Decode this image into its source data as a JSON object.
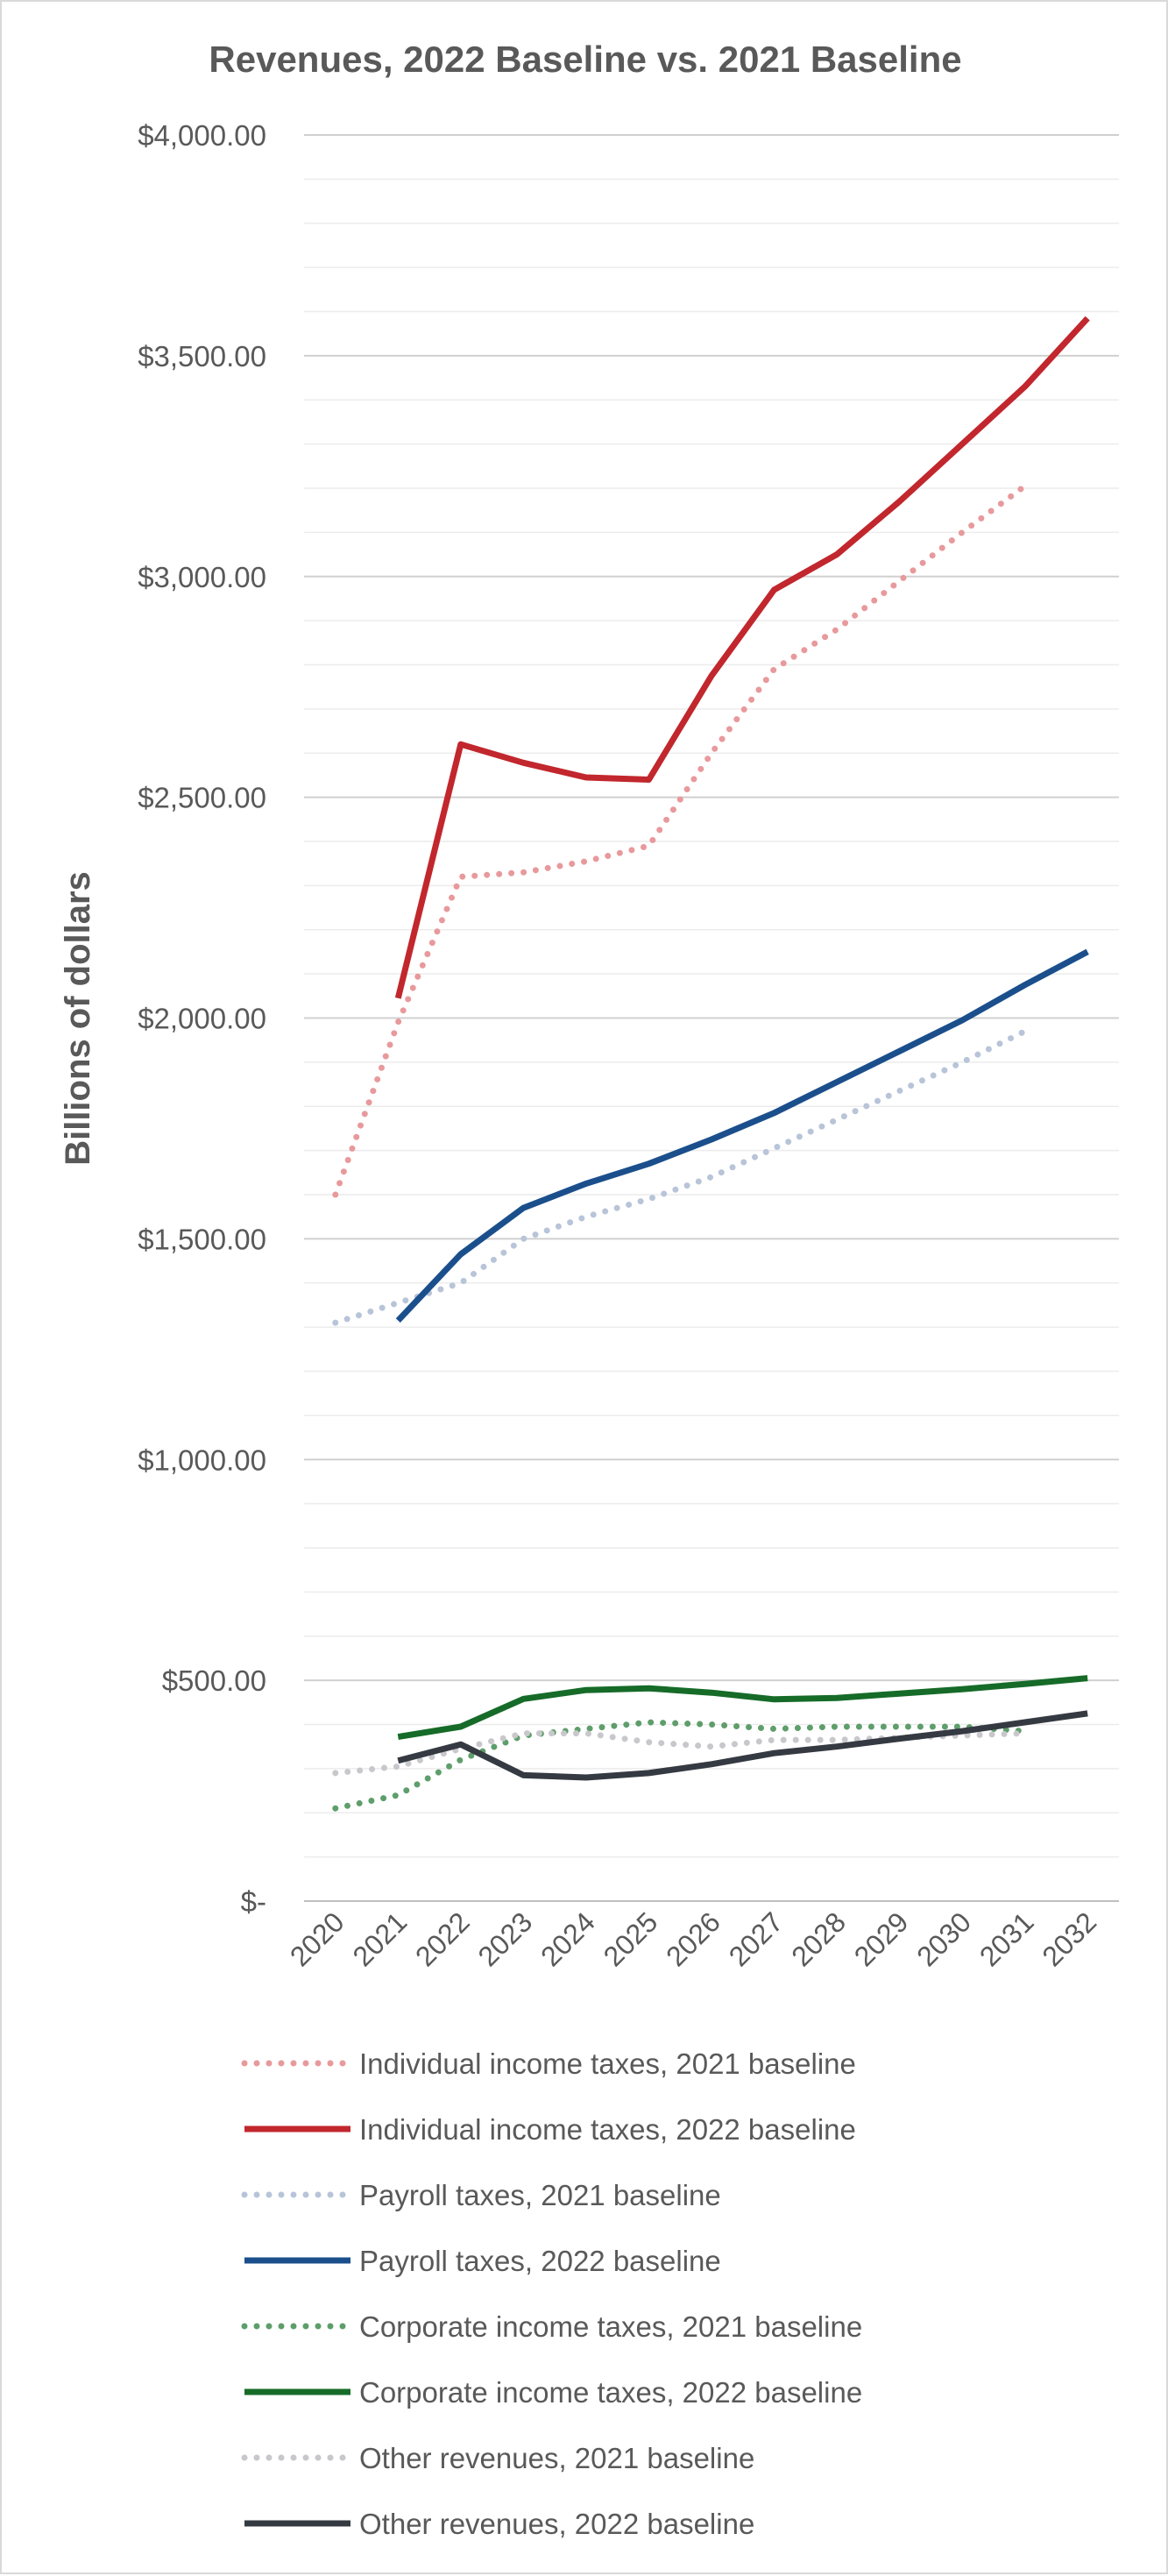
{
  "chart_data": {
    "type": "line",
    "title": "Revenues, 2022 Baseline vs. 2021 Baseline",
    "ylabel": "Billions of dollars",
    "xlabel": "",
    "x": [
      "2020",
      "2021",
      "2022",
      "2023",
      "2024",
      "2025",
      "2026",
      "2027",
      "2028",
      "2029",
      "2030",
      "2031",
      "2032"
    ],
    "y_ticks": [
      0,
      500,
      1000,
      1500,
      2000,
      2500,
      3000,
      3500,
      4000
    ],
    "y_tick_labels": [
      "$-",
      "$500.00",
      "$1,000.00",
      "$1,500.00",
      "$2,000.00",
      "$2,500.00",
      "$3,000.00",
      "$3,500.00",
      "$4,000.00"
    ],
    "ylim": [
      0,
      4000
    ],
    "minor_gridline_step": 100,
    "grid": true,
    "legend_position": "bottom",
    "series": [
      {
        "name": "Individual income taxes, 2021 baseline",
        "color": "#e8999c",
        "style": "dotted",
        "values": [
          1600,
          1990,
          2320,
          2330,
          2355,
          2390,
          2600,
          2790,
          2880,
          2990,
          3100,
          3205,
          null
        ]
      },
      {
        "name": "Individual income taxes, 2022 baseline",
        "color": "#c1272d",
        "style": "solid",
        "values": [
          null,
          2045,
          2620,
          2578,
          2545,
          2540,
          2775,
          2970,
          3050,
          3170,
          3300,
          3430,
          3585
        ]
      },
      {
        "name": "Payroll taxes, 2021 baseline",
        "color": "#b8c4d8",
        "style": "dotted",
        "values": [
          1310,
          1355,
          1400,
          1500,
          1550,
          1590,
          1640,
          1705,
          1770,
          1835,
          1900,
          1970,
          null
        ]
      },
      {
        "name": "Payroll taxes, 2022 baseline",
        "color": "#1b4f8c",
        "style": "solid",
        "values": [
          null,
          1315,
          1465,
          1570,
          1625,
          1670,
          1725,
          1785,
          1855,
          1925,
          1995,
          2075,
          2150
        ]
      },
      {
        "name": "Corporate income taxes, 2021 baseline",
        "color": "#5e9e6b",
        "style": "dotted",
        "values": [
          210,
          240,
          320,
          375,
          390,
          405,
          400,
          390,
          395,
          395,
          395,
          385,
          null
        ]
      },
      {
        "name": "Corporate income taxes, 2022 baseline",
        "color": "#166b28",
        "style": "solid",
        "values": [
          null,
          372,
          395,
          458,
          478,
          482,
          472,
          457,
          460,
          470,
          480,
          492,
          505
        ]
      },
      {
        "name": "Other revenues, 2021 baseline",
        "color": "#c8c8cc",
        "style": "dotted",
        "values": [
          290,
          305,
          345,
          380,
          380,
          360,
          350,
          365,
          365,
          370,
          375,
          380,
          null
        ]
      },
      {
        "name": "Other revenues, 2022 baseline",
        "color": "#353a42",
        "style": "solid",
        "values": [
          null,
          318,
          355,
          285,
          280,
          290,
          310,
          335,
          350,
          368,
          385,
          405,
          425
        ]
      }
    ]
  }
}
